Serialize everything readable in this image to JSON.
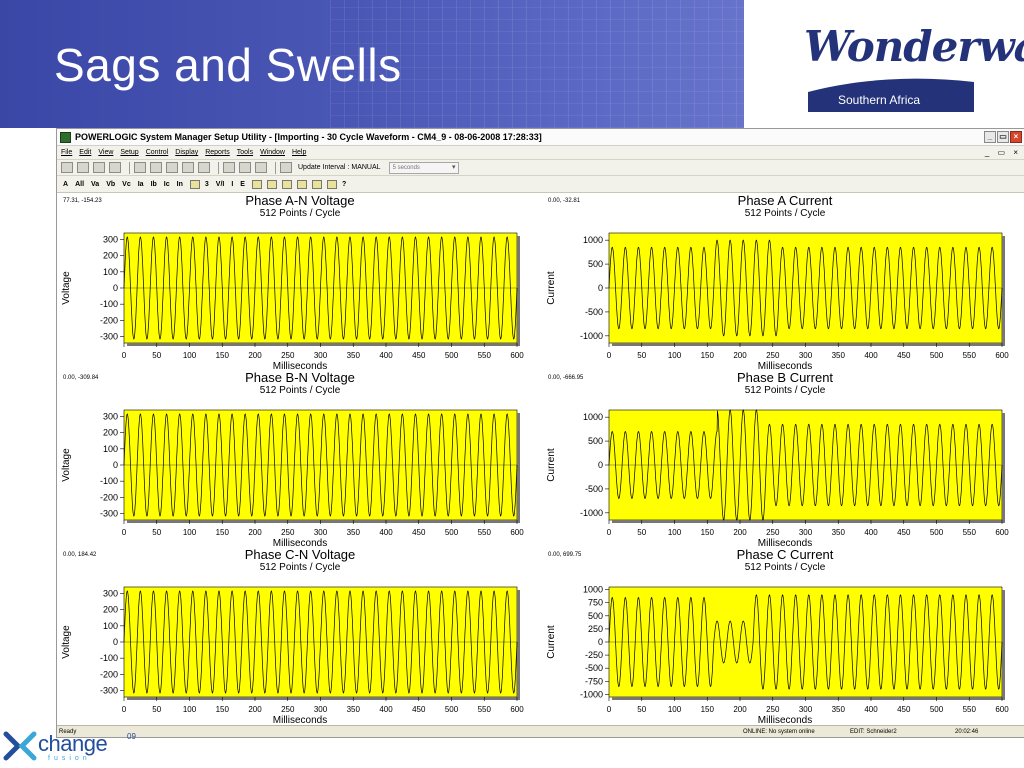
{
  "slide": {
    "title": "Sags and Swells",
    "brand_name": "Wonderware",
    "brand_sub": "Southern Africa",
    "footer_logo_text": "change",
    "footer_logo_year": "09",
    "footer_logo_sub": "fusion",
    "accent_color": "#3a47a6"
  },
  "window": {
    "title": "POWERLOGIC System Manager Setup Utility - [Importing - 30 Cycle Waveform - CM4_9 - 08-06-2008 17:28:33]",
    "menu": [
      "File",
      "Edit",
      "View",
      "Setup",
      "Control",
      "Display",
      "Reports",
      "Tools",
      "Window",
      "Help"
    ],
    "toolbar": {
      "update_interval_label": "Update Interval :",
      "update_interval_value": "MANUAL",
      "interval_select_placeholder": "5 seconds"
    },
    "channels": [
      "A",
      "All",
      "Va",
      "Vb",
      "Vc",
      "Ia",
      "Ib",
      "Ic",
      "In"
    ],
    "extra_buttons": [
      "3",
      "V/I",
      "I",
      "E",
      "?"
    ],
    "status": {
      "ready": "Ready",
      "online": "ONLINE: No system online",
      "edit": "EDIT: Schneider2",
      "time": "20:02:46"
    }
  },
  "chart_data": [
    {
      "type": "line",
      "title": "Phase A-N Voltage",
      "subtitle": "512 Points / Cycle",
      "xlabel": "Milliseconds",
      "ylabel": "Voltage",
      "cursor_readout": "77.31, -154.23",
      "xlim": [
        0,
        600
      ],
      "ylim": [
        -340,
        340
      ],
      "xticks": [
        0,
        50,
        100,
        150,
        200,
        250,
        300,
        350,
        400,
        450,
        500,
        550,
        600
      ],
      "yticks": [
        300,
        200,
        100,
        0,
        -100,
        -200,
        -300
      ],
      "waveform": {
        "frequency_hz": 50,
        "duration_ms": 600,
        "segments": [
          {
            "from_ms": 0,
            "to_ms": 600,
            "amplitude": 315
          }
        ]
      },
      "background": "#ffff00"
    },
    {
      "type": "line",
      "title": "Phase A Current",
      "subtitle": "512 Points / Cycle",
      "xlabel": "Milliseconds",
      "ylabel": "Current",
      "cursor_readout": "0.00, -32.81",
      "xlim": [
        0,
        600
      ],
      "ylim": [
        -1150,
        1150
      ],
      "xticks": [
        0,
        50,
        100,
        150,
        200,
        250,
        300,
        350,
        400,
        450,
        500,
        550,
        600
      ],
      "yticks": [
        1000,
        500,
        0,
        -500,
        -1000
      ],
      "waveform": {
        "frequency_hz": 50,
        "duration_ms": 600,
        "segments": [
          {
            "from_ms": 0,
            "to_ms": 160,
            "amplitude": 850
          },
          {
            "from_ms": 160,
            "to_ms": 180,
            "amplitude": 1000
          },
          {
            "from_ms": 180,
            "to_ms": 260,
            "amplitude": 1000
          },
          {
            "from_ms": 260,
            "to_ms": 600,
            "amplitude": 850
          }
        ]
      },
      "background": "#ffff00"
    },
    {
      "type": "line",
      "title": "Phase B-N Voltage",
      "subtitle": "512 Points / Cycle",
      "xlabel": "Milliseconds",
      "ylabel": "Voltage",
      "cursor_readout": "0.00, -309.84",
      "xlim": [
        0,
        600
      ],
      "ylim": [
        -340,
        340
      ],
      "xticks": [
        0,
        50,
        100,
        150,
        200,
        250,
        300,
        350,
        400,
        450,
        500,
        550,
        600
      ],
      "yticks": [
        300,
        200,
        100,
        0,
        -100,
        -200,
        -300
      ],
      "waveform": {
        "frequency_hz": 50,
        "duration_ms": 600,
        "segments": [
          {
            "from_ms": 0,
            "to_ms": 600,
            "amplitude": 315
          }
        ]
      },
      "background": "#ffff00"
    },
    {
      "type": "line",
      "title": "Phase B Current",
      "subtitle": "512 Points / Cycle",
      "xlabel": "Milliseconds",
      "ylabel": "Current",
      "cursor_readout": "0.00, -666.95",
      "xlim": [
        0,
        600
      ],
      "ylim": [
        -1150,
        1150
      ],
      "xticks": [
        0,
        50,
        100,
        150,
        200,
        250,
        300,
        350,
        400,
        450,
        500,
        550,
        600
      ],
      "yticks": [
        1000,
        500,
        0,
        -500,
        -1000
      ],
      "waveform": {
        "frequency_hz": 50,
        "duration_ms": 600,
        "segments": [
          {
            "from_ms": 0,
            "to_ms": 165,
            "amplitude": 700
          },
          {
            "from_ms": 165,
            "to_ms": 240,
            "amplitude": 1150
          },
          {
            "from_ms": 240,
            "to_ms": 600,
            "amplitude": 850
          }
        ]
      },
      "background": "#ffff00"
    },
    {
      "type": "line",
      "title": "Phase C-N Voltage",
      "subtitle": "512 Points / Cycle",
      "xlabel": "Milliseconds",
      "ylabel": "Voltage",
      "cursor_readout": "0.00, 184.42",
      "xlim": [
        0,
        600
      ],
      "ylim": [
        -340,
        340
      ],
      "xticks": [
        0,
        50,
        100,
        150,
        200,
        250,
        300,
        350,
        400,
        450,
        500,
        550,
        600
      ],
      "yticks": [
        300,
        200,
        100,
        0,
        -100,
        -200,
        -300
      ],
      "waveform": {
        "frequency_hz": 50,
        "duration_ms": 600,
        "segments": [
          {
            "from_ms": 0,
            "to_ms": 600,
            "amplitude": 315
          }
        ]
      },
      "background": "#ffff00"
    },
    {
      "type": "line",
      "title": "Phase C Current",
      "subtitle": "512 Points / Cycle",
      "xlabel": "Milliseconds",
      "ylabel": "Current",
      "cursor_readout": "0.00, 699.75",
      "xlim": [
        0,
        600
      ],
      "ylim": [
        -1050,
        1050
      ],
      "xticks": [
        0,
        50,
        100,
        150,
        200,
        250,
        300,
        350,
        400,
        450,
        500,
        550,
        600
      ],
      "yticks": [
        1000,
        750,
        500,
        250,
        0,
        -250,
        -500,
        -750,
        -1000
      ],
      "waveform": {
        "frequency_hz": 50,
        "duration_ms": 600,
        "segments": [
          {
            "from_ms": 0,
            "to_ms": 160,
            "amplitude": 850
          },
          {
            "from_ms": 160,
            "to_ms": 220,
            "amplitude": 400
          },
          {
            "from_ms": 220,
            "to_ms": 600,
            "amplitude": 900
          }
        ]
      },
      "background": "#ffff00"
    }
  ]
}
